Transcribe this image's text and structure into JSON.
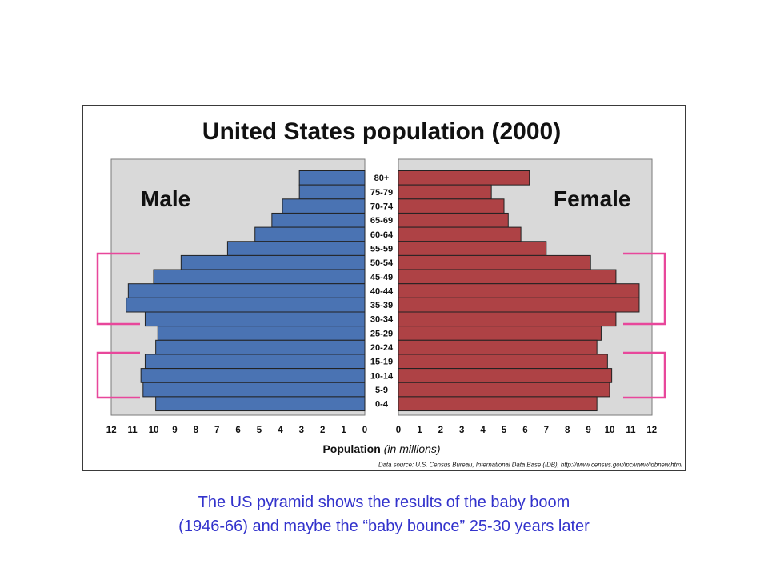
{
  "colors": {
    "panel": "#d9d9d9",
    "bracket": "#e8479b",
    "caption": "#3333cc"
  },
  "chart_data": {
    "type": "bar",
    "orientation": "horizontal",
    "title": "United States population (2000)",
    "xlabel": "Population",
    "xlabel_unit": "(in millions)",
    "source_note": "Data source: U.S. Census Bureau, International Data Base (IDB), http://www.census.gov/ipc/www/idbnew.html",
    "categories": [
      "80+",
      "75-79",
      "70-74",
      "65-69",
      "60-64",
      "55-59",
      "50-54",
      "45-49",
      "40-44",
      "35-39",
      "30-34",
      "25-29",
      "20-24",
      "15-19",
      "10-14",
      "5-9",
      "0-4"
    ],
    "xlim": [
      0,
      12
    ],
    "xticks": [
      0,
      1,
      2,
      3,
      4,
      5,
      6,
      7,
      8,
      9,
      10,
      11,
      12
    ],
    "grid": false,
    "series": [
      {
        "name": "Male",
        "side": "left",
        "color": "#4a73b3",
        "values": [
          3.1,
          3.1,
          3.9,
          4.4,
          5.2,
          6.5,
          8.7,
          10.0,
          11.2,
          11.3,
          10.4,
          9.8,
          9.9,
          10.4,
          10.6,
          10.5,
          9.9
        ]
      },
      {
        "name": "Female",
        "side": "right",
        "color": "#ae4245",
        "values": [
          6.2,
          4.4,
          5.0,
          5.2,
          5.8,
          7.0,
          9.1,
          10.3,
          11.4,
          11.4,
          10.3,
          9.6,
          9.4,
          9.9,
          10.1,
          10.0,
          9.4
        ]
      }
    ]
  },
  "slide": {
    "caption_lines": [
      "The US pyramid shows the results of the baby boom",
      "(1946-66) and maybe the “baby bounce” 25-30 years later"
    ]
  }
}
